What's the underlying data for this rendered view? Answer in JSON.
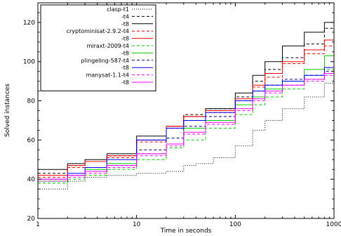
{
  "chart_data": {
    "type": "line",
    "title": "",
    "xlabel": "Time in seconds",
    "ylabel": "Solved instances",
    "x_scale": "log",
    "xlim": [
      1,
      1000
    ],
    "ylim": [
      20,
      130
    ],
    "x_ticks": [
      1,
      10,
      100,
      1000
    ],
    "x_tick_labels": [
      "1",
      "10",
      "100",
      "1000"
    ],
    "y_ticks": [
      20,
      40,
      60,
      80,
      100,
      120
    ],
    "y_tick_labels": [
      "20",
      "40",
      "60",
      "80",
      "100",
      "120"
    ],
    "grid": false,
    "legend_position": "top-left",
    "legend_items": [
      {
        "label": "clasp-t1"
      },
      {
        "label": "-t4"
      },
      {
        "label": "-t8"
      },
      {
        "label": "cryptominisat-2.9.2-t4"
      },
      {
        "label": "-t8"
      },
      {
        "label": "miraxt-2009-t4"
      },
      {
        "label": "-t8"
      },
      {
        "label": "plingeling-587-t4"
      },
      {
        "label": "-t8"
      },
      {
        "label": "manysat-1.1-t4"
      },
      {
        "label": "-t8"
      }
    ],
    "series": [
      {
        "legend_index": 0,
        "color": "#000000",
        "dash": "1,2",
        "x": [
          1,
          2,
          3,
          5,
          10,
          20,
          30,
          40,
          60,
          100,
          150,
          200,
          300,
          500,
          800,
          1000
        ],
        "y": [
          35,
          39,
          41,
          42,
          43,
          44,
          47,
          48,
          51,
          57,
          65,
          70,
          76,
          82,
          89,
          94
        ]
      },
      {
        "legend_index": 1,
        "color": "#000000",
        "dash": "4,3",
        "x": [
          1,
          2,
          3,
          5,
          10,
          20,
          30,
          50,
          100,
          150,
          200,
          300,
          500,
          800,
          1000
        ],
        "y": [
          43,
          47,
          49,
          52,
          60,
          67,
          73,
          76,
          82,
          90,
          96,
          102,
          109,
          117,
          119
        ]
      },
      {
        "legend_index": 2,
        "color": "#000000",
        "dash": "",
        "x": [
          1,
          2,
          3,
          5,
          10,
          20,
          30,
          50,
          100,
          150,
          200,
          300,
          500,
          800,
          1000
        ],
        "y": [
          45,
          48,
          50,
          53,
          62,
          67,
          72,
          76,
          84,
          93,
          100,
          108,
          115,
          120,
          122
        ]
      },
      {
        "legend_index": 3,
        "color": "#ff0000",
        "dash": "4,3",
        "x": [
          1,
          2,
          3,
          5,
          10,
          20,
          30,
          50,
          100,
          150,
          200,
          300,
          500,
          800,
          1000
        ],
        "y": [
          41,
          46,
          49,
          51,
          59,
          66,
          70,
          74,
          80,
          87,
          92,
          99,
          104,
          108,
          110
        ]
      },
      {
        "legend_index": 4,
        "color": "#ff0000",
        "dash": "",
        "x": [
          1,
          2,
          3,
          5,
          10,
          20,
          30,
          50,
          100,
          150,
          200,
          300,
          500,
          800,
          1000
        ],
        "y": [
          42,
          47,
          49,
          52,
          60,
          67,
          72,
          75,
          81,
          88,
          94,
          100,
          106,
          111,
          114
        ]
      },
      {
        "legend_index": 5,
        "color": "#00cc00",
        "dash": "4,3",
        "x": [
          1,
          2,
          3,
          5,
          10,
          20,
          30,
          50,
          100,
          150,
          200,
          300,
          500,
          800,
          1000
        ],
        "y": [
          38,
          40,
          42,
          45,
          50,
          56,
          60,
          66,
          73,
          78,
          82,
          86,
          91,
          96,
          104
        ]
      },
      {
        "legend_index": 6,
        "color": "#00cc00",
        "dash": "",
        "x": [
          1,
          2,
          3,
          5,
          10,
          20,
          30,
          50,
          100,
          150,
          200,
          300,
          500,
          800,
          1000
        ],
        "y": [
          39,
          42,
          45,
          48,
          53,
          58,
          66,
          70,
          78,
          82,
          86,
          90,
          96,
          103,
          109
        ]
      },
      {
        "legend_index": 7,
        "color": "#000088",
        "dash": "4,3",
        "x": [
          1,
          2,
          3,
          5,
          10,
          20,
          30,
          50,
          100,
          150,
          200,
          300,
          500,
          800,
          1000
        ],
        "y": [
          39,
          42,
          44,
          47,
          55,
          61,
          67,
          72,
          80,
          85,
          88,
          91,
          93,
          95,
          96
        ]
      },
      {
        "legend_index": 8,
        "color": "#0000ff",
        "dash": "",
        "x": [
          1,
          2,
          3,
          5,
          10,
          20,
          30,
          50,
          100,
          150,
          200,
          300,
          500,
          800,
          1000
        ],
        "y": [
          40,
          43,
          46,
          50,
          60,
          66,
          70,
          74,
          80,
          85,
          88,
          90,
          93,
          97,
          102
        ]
      },
      {
        "legend_index": 9,
        "color": "#ff00ff",
        "dash": "4,3",
        "x": [
          1,
          2,
          3,
          5,
          10,
          20,
          30,
          50,
          100,
          150,
          200,
          300,
          500,
          800,
          1000
        ],
        "y": [
          39,
          41,
          43,
          46,
          52,
          57,
          63,
          68,
          75,
          80,
          84,
          88,
          90,
          93,
          96
        ]
      },
      {
        "legend_index": 10,
        "color": "#ff00ff",
        "dash": "",
        "x": [
          1,
          2,
          3,
          5,
          10,
          20,
          30,
          50,
          100,
          150,
          200,
          300,
          500,
          800,
          1000
        ],
        "y": [
          40,
          42,
          44,
          47,
          53,
          58,
          64,
          69,
          76,
          81,
          85,
          88,
          91,
          94,
          97
        ]
      }
    ]
  }
}
